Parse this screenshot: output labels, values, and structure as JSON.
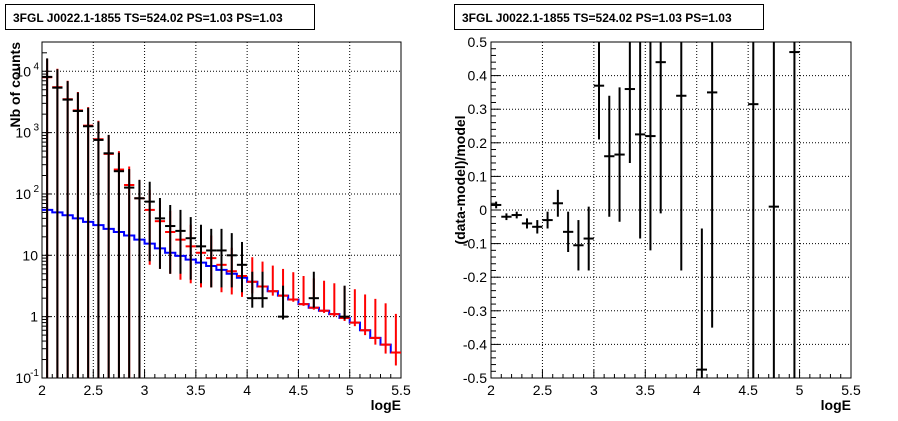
{
  "chart_data": [
    {
      "type": "histogram",
      "title": "3FGL J0022.1-1855 TS=524.02 PS=1.03 PS=1.03",
      "xlabel": "logE",
      "ylabel": "Nb of counts",
      "xlim": [
        2,
        5.5
      ],
      "ylim": [
        0.1,
        30000
      ],
      "ylog": true,
      "grid": true,
      "xticks": [
        "2",
        "2.5",
        "3",
        "3.5",
        "4",
        "4.5",
        "5",
        "5.5"
      ],
      "yticks": [
        {
          "value": 0.1,
          "label": "10",
          "sup": "-1"
        },
        {
          "value": 1,
          "label": "1",
          "sup": ""
        },
        {
          "value": 10,
          "label": "10",
          "sup": ""
        },
        {
          "value": 100,
          "label": "10",
          "sup": "2"
        },
        {
          "value": 1000,
          "label": "10",
          "sup": "3"
        },
        {
          "value": 10000,
          "label": "10",
          "sup": "4"
        }
      ],
      "bin_width": 0.1,
      "series": [
        {
          "color": "#0000ff",
          "style": "step",
          "x": [
            2.05,
            2.15,
            2.25,
            2.35,
            2.45,
            2.55,
            2.65,
            2.75,
            2.85,
            2.95,
            3.05,
            3.15,
            3.25,
            3.35,
            3.45,
            3.55,
            3.65,
            3.75,
            3.85,
            3.95,
            4.05,
            4.15,
            4.25,
            4.35,
            4.45,
            4.55,
            4.65,
            4.75,
            4.85,
            4.95,
            5.05,
            5.15,
            5.25,
            5.35,
            5.45
          ],
          "y": [
            55,
            50,
            45,
            40,
            35,
            31,
            27,
            24,
            21,
            18,
            15.5,
            13,
            11,
            9.8,
            8.5,
            7.6,
            6.7,
            5.8,
            5.0,
            4.3,
            3.7,
            3.1,
            2.6,
            2.2,
            1.9,
            1.6,
            1.4,
            1.25,
            1.1,
            0.95,
            0.8,
            0.6,
            0.45,
            0.35,
            0.26
          ]
        },
        {
          "color": "#ff0000",
          "style": "errorbar",
          "x": [
            2.05,
            2.15,
            2.25,
            2.35,
            2.45,
            2.55,
            2.65,
            2.75,
            2.85,
            2.95,
            3.05,
            3.15,
            3.25,
            3.35,
            3.45,
            3.55,
            3.65,
            3.75,
            3.85,
            3.95,
            4.05,
            4.15,
            4.25,
            4.35,
            4.45,
            4.55,
            4.65,
            4.75,
            4.85,
            4.95,
            5.05,
            5.15,
            5.25,
            5.35,
            5.45
          ],
          "y": [
            8000,
            5500,
            3500,
            2300,
            1300,
            780,
            450,
            250,
            140,
            85,
            55,
            36,
            24,
            18,
            14,
            11,
            9,
            7,
            5.5,
            4.6,
            3.7,
            3.1,
            2.6,
            2.2,
            1.9,
            1.6,
            1.4,
            1.25,
            1.1,
            0.95,
            0.8,
            0.6,
            0.45,
            0.35,
            0.26
          ],
          "yerr": [
            [
              8000,
              8000
            ],
            [
              5500,
              5500
            ],
            [
              3500,
              3500
            ],
            [
              2300,
              2300
            ],
            [
              1300,
              1300
            ],
            [
              780,
              780
            ],
            [
              450,
              450
            ],
            [
              250,
              250
            ],
            [
              140,
              140
            ],
            [
              85,
              85
            ],
            [
              48,
              62
            ],
            [
              30,
              42
            ],
            [
              19,
              29
            ],
            [
              14,
              22
            ],
            [
              10.5,
              17.5
            ],
            [
              8,
              14
            ],
            [
              6,
              12
            ],
            [
              4.5,
              9.5
            ],
            [
              3.2,
              7.8
            ],
            [
              2.5,
              6.7
            ],
            [
              1.3,
              5.6
            ],
            [
              0.7,
              4.8
            ],
            [
              0.4,
              4.2
            ],
            [
              0.2,
              3.8
            ],
            [
              0.15,
              3.4
            ],
            [
              0.1,
              3.0
            ],
            [
              0.1,
              2.8
            ],
            [
              0.1,
              2.6
            ],
            [
              0.1,
              2.4
            ],
            [
              0.1,
              2.2
            ],
            [
              0.1,
              2.0
            ],
            [
              0.1,
              1.7
            ],
            [
              0.1,
              1.5
            ],
            [
              0.1,
              1.3
            ],
            [
              0.1,
              0.85
            ]
          ]
        },
        {
          "color": "#000000",
          "style": "errorbar",
          "x": [
            2.05,
            2.15,
            2.25,
            2.35,
            2.45,
            2.55,
            2.65,
            2.75,
            2.85,
            2.95,
            3.05,
            3.15,
            3.25,
            3.35,
            3.45,
            3.55,
            3.65,
            3.75,
            3.85,
            3.95,
            4.05,
            4.15,
            4.35,
            4.65,
            4.95
          ],
          "y": [
            8100,
            5400,
            3450,
            2250,
            1270,
            760,
            460,
            235,
            127,
            85,
            75,
            40,
            30,
            25,
            19,
            14,
            12,
            12,
            10,
            7,
            2,
            2,
            1,
            2,
            1
          ],
          "yerr": [
            [
              8100,
              8100
            ],
            [
              5400,
              5400
            ],
            [
              3450,
              3450
            ],
            [
              2250,
              2250
            ],
            [
              1270,
              1270
            ],
            [
              760,
              760
            ],
            [
              460,
              460
            ],
            [
              235,
              235
            ],
            [
              127,
              127
            ],
            [
              85,
              85
            ],
            [
              67,
              83
            ],
            [
              34,
              46
            ],
            [
              25,
              36
            ],
            [
              20,
              30
            ],
            [
              15,
              23
            ],
            [
              10.5,
              17.5
            ],
            [
              9,
              15
            ],
            [
              9,
              15
            ],
            [
              7,
              13
            ],
            [
              4.5,
              9.5
            ],
            [
              0.6,
              3.4
            ],
            [
              0.6,
              3.4
            ],
            [
              0.1,
              2.2
            ],
            [
              0.6,
              3.4
            ],
            [
              0.1,
              2.2
            ]
          ]
        }
      ]
    },
    {
      "type": "errorbar",
      "title": "3FGL J0022.1-1855 TS=524.02 PS=1.03 PS=1.03",
      "xlabel": "logE",
      "ylabel": "(data-model)/model",
      "xlim": [
        2,
        5.5
      ],
      "ylim": [
        -0.5,
        0.5
      ],
      "grid": true,
      "xticks": [
        "2",
        "2.5",
        "3",
        "3.5",
        "4",
        "4.5",
        "5",
        "5.5"
      ],
      "yticks": [
        "-0.5",
        "-0.4",
        "-0.3",
        "-0.2",
        "-0.1",
        "0",
        "0.1",
        "0.2",
        "0.3",
        "0.4",
        "0.5"
      ],
      "bin_width": 0.1,
      "series": [
        {
          "color": "#000000",
          "x": [
            2.05,
            2.15,
            2.25,
            2.35,
            2.45,
            2.55,
            2.65,
            2.75,
            2.85,
            2.95,
            3.05,
            3.15,
            3.25,
            3.35,
            3.45,
            3.55,
            3.65,
            3.85,
            4.05,
            4.15,
            4.55,
            4.75,
            4.95
          ],
          "y": [
            0.015,
            -0.02,
            -0.015,
            -0.04,
            -0.05,
            -0.03,
            0.02,
            -0.065,
            -0.105,
            -0.085,
            0.37,
            0.16,
            0.165,
            0.36,
            0.225,
            0.22,
            0.44,
            0.34,
            -0.475,
            0.35,
            0.315,
            0.01,
            0.47
          ],
          "yerr": [
            0.01,
            0.01,
            0.01,
            0.015,
            0.02,
            0.025,
            0.04,
            0.06,
            0.075,
            0.095,
            0.16,
            0.18,
            0.2,
            0.22,
            0.31,
            0.34,
            0.45,
            0.52,
            0.42,
            0.7,
            0.9,
            1.0,
            1.0
          ]
        }
      ]
    }
  ]
}
